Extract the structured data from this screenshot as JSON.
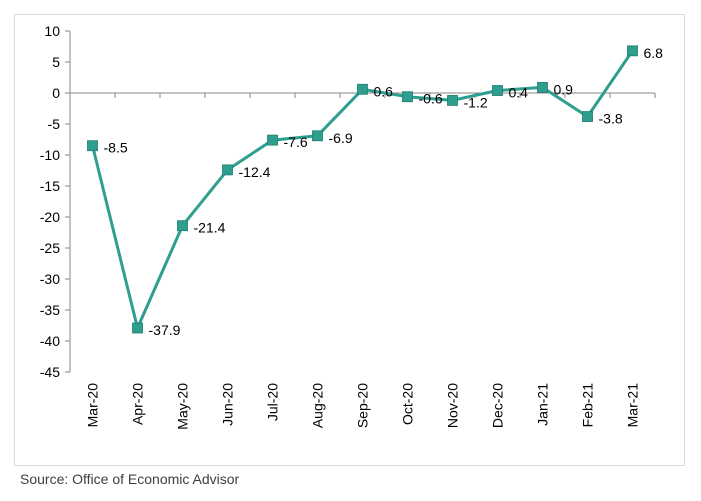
{
  "chart_data": {
    "type": "line",
    "categories": [
      "Mar-20",
      "Apr-20",
      "May-20",
      "Jun-20",
      "Jul-20",
      "Aug-20",
      "Sep-20",
      "Oct-20",
      "Nov-20",
      "Dec-20",
      "Jan-21",
      "Feb-21",
      "Mar-21"
    ],
    "series": [
      {
        "values": [
          -8.5,
          -37.9,
          -21.4,
          -12.4,
          -7.6,
          -6.9,
          0.6,
          -0.6,
          -1.2,
          0.4,
          0.9,
          -3.8,
          6.8
        ]
      }
    ],
    "data_labels": [
      "-8.5",
      "-37.9",
      "-21.4",
      "-12.4",
      "-7.6",
      "-6.9",
      "0.6",
      "-0.6",
      "-1.2",
      "0.4",
      "0.9",
      "-3.8",
      "6.8"
    ],
    "y_ticks": [
      "10",
      "5",
      "0",
      "-5",
      "-10",
      "-15",
      "-20",
      "-25",
      "-30",
      "-35",
      "-40",
      "-45"
    ],
    "ylim": [
      -45,
      10
    ],
    "color": "#2e9e8f",
    "marker_color": "#2e9e8f",
    "grid": false,
    "legend": "none"
  },
  "source": "Source: Office of Economic Advisor"
}
